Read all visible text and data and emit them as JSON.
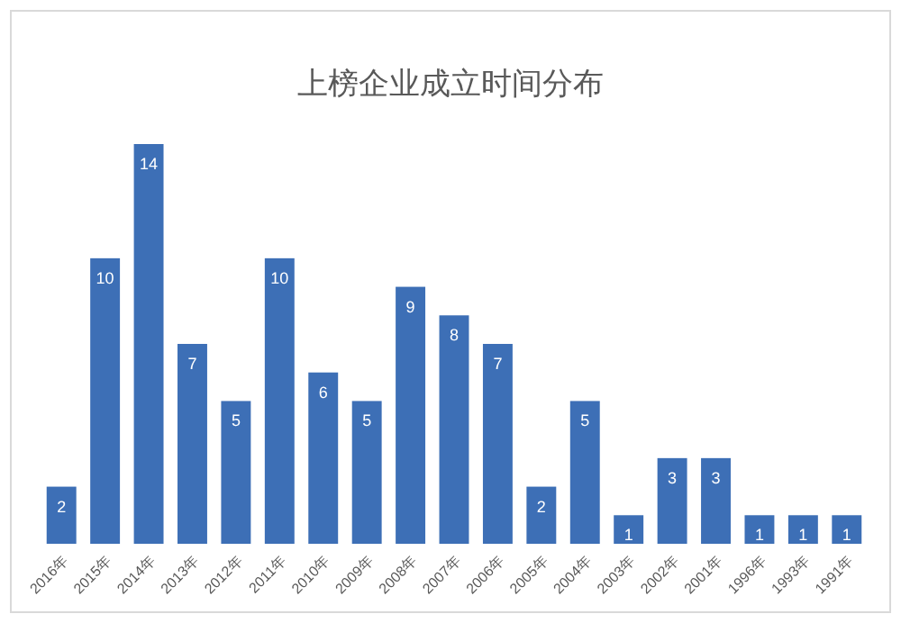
{
  "chart_data": {
    "type": "bar",
    "title": "上榜企业成立时间分布",
    "categories": [
      "2016年",
      "2015年",
      "2014年",
      "2013年",
      "2012年",
      "2011年",
      "2010年",
      "2009年",
      "2008年",
      "2007年",
      "2006年",
      "2005年",
      "2004年",
      "2003年",
      "2002年",
      "2001年",
      "1996年",
      "1993年",
      "1991年"
    ],
    "values": [
      2,
      10,
      14,
      7,
      5,
      10,
      6,
      5,
      9,
      8,
      7,
      2,
      5,
      1,
      3,
      3,
      1,
      1,
      1
    ],
    "color": "#3d6fb6",
    "data_labels": true
  }
}
